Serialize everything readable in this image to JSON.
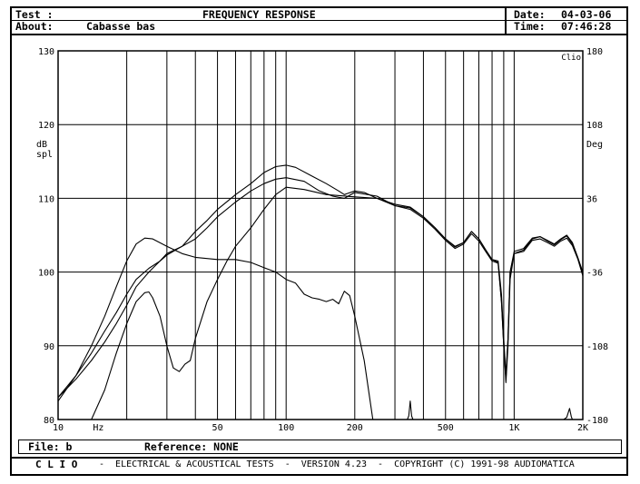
{
  "header": {
    "test_label": "Test :",
    "title": "FREQUENCY RESPONSE",
    "about_label": "About:",
    "about_value": "Cabasse bas",
    "date_label": "Date:",
    "date_value": "04-03-06",
    "time_label": "Time:",
    "time_value": "07:46:28"
  },
  "footer": {
    "file_label": "File: b",
    "reference_label": "Reference: NONE",
    "clio": "C L I O",
    "banner": "-  ELECTRICAL & ACOUSTICAL TESTS  -  VERSION 4.23  -  COPYRIGHT (C) 1991-98 AUDIOMATICA"
  },
  "chart_data": {
    "type": "line",
    "title": "FREQUENCY RESPONSE",
    "brand_corner": "Clio",
    "x_scale": "log",
    "xlim": [
      10,
      2000
    ],
    "x_ticks": [
      {
        "value": 10,
        "label": "10"
      },
      {
        "value": 12.5,
        "label": "Hz"
      },
      {
        "value": 50,
        "label": "50"
      },
      {
        "value": 100,
        "label": "100"
      },
      {
        "value": 200,
        "label": "200"
      },
      {
        "value": 500,
        "label": "500"
      },
      {
        "value": 1000,
        "label": "1K"
      },
      {
        "value": 2000,
        "label": "2K"
      }
    ],
    "x_gridlines": [
      10,
      20,
      30,
      40,
      50,
      60,
      70,
      80,
      90,
      100,
      200,
      300,
      400,
      500,
      600,
      700,
      800,
      900,
      1000,
      2000
    ],
    "y_left": {
      "label_line1": "dB",
      "label_line2": "spl",
      "ylim": [
        80,
        130
      ],
      "ticks": [
        80,
        90,
        100,
        110,
        120,
        130
      ]
    },
    "y_right": {
      "label": "Deg",
      "ylim": [
        -180,
        180
      ],
      "ticks": [
        -180,
        -108,
        -36,
        36,
        108,
        180
      ]
    },
    "grid": true,
    "series": [
      {
        "color": "#000000",
        "points": [
          [
            10,
            82.5
          ],
          [
            12,
            86
          ],
          [
            14,
            89
          ],
          [
            16,
            92
          ],
          [
            18,
            94.5
          ],
          [
            20,
            97
          ],
          [
            22,
            99
          ],
          [
            25,
            100.5
          ],
          [
            28,
            101.5
          ],
          [
            30,
            102.3
          ],
          [
            35,
            103.5
          ],
          [
            40,
            105.5
          ],
          [
            45,
            107
          ],
          [
            50,
            108.5
          ],
          [
            60,
            110.5
          ],
          [
            70,
            112
          ],
          [
            80,
            113.5
          ],
          [
            90,
            114.3
          ],
          [
            100,
            114.5
          ],
          [
            110,
            114.2
          ],
          [
            130,
            113
          ],
          [
            150,
            112
          ],
          [
            170,
            111
          ],
          [
            180,
            110.5
          ],
          [
            200,
            111
          ],
          [
            220,
            110.8
          ],
          [
            250,
            110
          ],
          [
            300,
            109
          ],
          [
            350,
            108.7
          ],
          [
            400,
            107.5
          ],
          [
            450,
            106
          ],
          [
            500,
            104.5
          ],
          [
            550,
            103.5
          ],
          [
            600,
            104
          ],
          [
            650,
            105.5
          ],
          [
            700,
            104.5
          ],
          [
            750,
            103
          ],
          [
            800,
            101.7
          ],
          [
            850,
            101.5
          ],
          [
            880,
            97
          ],
          [
            900,
            91
          ],
          [
            920,
            86
          ],
          [
            940,
            91
          ],
          [
            960,
            100
          ],
          [
            1000,
            102.5
          ],
          [
            1100,
            103
          ],
          [
            1200,
            104.5
          ],
          [
            1300,
            104.8
          ],
          [
            1400,
            104.3
          ],
          [
            1500,
            103.8
          ],
          [
            1600,
            104.5
          ],
          [
            1700,
            105
          ],
          [
            1800,
            104
          ],
          [
            1900,
            102
          ],
          [
            2000,
            100
          ]
        ]
      },
      {
        "color": "#000000",
        "points": [
          [
            10,
            83
          ],
          [
            12,
            85.5
          ],
          [
            14,
            88
          ],
          [
            16,
            90.5
          ],
          [
            18,
            93
          ],
          [
            20,
            95.5
          ],
          [
            22,
            98
          ],
          [
            25,
            100
          ],
          [
            28,
            101.5
          ],
          [
            30,
            102.5
          ],
          [
            35,
            103.5
          ],
          [
            40,
            104.5
          ],
          [
            45,
            106
          ],
          [
            50,
            107.5
          ],
          [
            60,
            109.5
          ],
          [
            70,
            111
          ],
          [
            80,
            112
          ],
          [
            90,
            112.6
          ],
          [
            100,
            112.8
          ],
          [
            120,
            112.3
          ],
          [
            140,
            111
          ],
          [
            160,
            110.3
          ],
          [
            180,
            110
          ],
          [
            200,
            110.8
          ],
          [
            250,
            110.3
          ],
          [
            300,
            109
          ],
          [
            350,
            108.5
          ],
          [
            400,
            107.3
          ],
          [
            450,
            105.8
          ],
          [
            500,
            104.3
          ],
          [
            550,
            103.2
          ],
          [
            600,
            103.8
          ],
          [
            650,
            105.2
          ],
          [
            700,
            104.2
          ],
          [
            750,
            102.8
          ],
          [
            800,
            101.5
          ],
          [
            850,
            101.2
          ],
          [
            880,
            96
          ],
          [
            900,
            90
          ],
          [
            920,
            85
          ],
          [
            940,
            90
          ],
          [
            960,
            99
          ],
          [
            1000,
            102.5
          ],
          [
            1100,
            102.8
          ],
          [
            1200,
            104.3
          ],
          [
            1300,
            104.5
          ],
          [
            1400,
            104
          ],
          [
            1500,
            103.5
          ],
          [
            1600,
            104.2
          ],
          [
            1700,
            104.6
          ],
          [
            1800,
            103.6
          ],
          [
            1900,
            101.8
          ],
          [
            2000,
            99.5
          ]
        ]
      },
      {
        "color": "#000000",
        "points": [
          [
            10,
            83
          ],
          [
            12,
            86
          ],
          [
            14,
            90
          ],
          [
            16,
            94
          ],
          [
            18,
            98
          ],
          [
            20,
            101.5
          ],
          [
            22,
            103.8
          ],
          [
            24,
            104.6
          ],
          [
            26,
            104.5
          ],
          [
            30,
            103.5
          ],
          [
            35,
            102.5
          ],
          [
            40,
            102
          ],
          [
            50,
            101.7
          ],
          [
            60,
            101.7
          ],
          [
            70,
            101.3
          ],
          [
            80,
            100.6
          ],
          [
            90,
            100
          ],
          [
            100,
            99
          ],
          [
            110,
            98.5
          ],
          [
            120,
            97
          ],
          [
            130,
            96.5
          ],
          [
            140,
            96.3
          ],
          [
            150,
            96
          ],
          [
            160,
            96.3
          ],
          [
            170,
            95.7
          ],
          [
            180,
            97.4
          ],
          [
            190,
            96.8
          ],
          [
            200,
            94
          ],
          [
            220,
            88
          ],
          [
            240,
            80
          ]
        ]
      },
      {
        "color": "#000000",
        "points": [
          [
            14,
            80
          ],
          [
            16,
            84
          ],
          [
            18,
            89
          ],
          [
            20,
            93
          ],
          [
            22,
            96
          ],
          [
            24,
            97.2
          ],
          [
            25,
            97.3
          ],
          [
            26,
            96.5
          ],
          [
            28,
            94
          ],
          [
            30,
            90
          ],
          [
            32,
            87
          ],
          [
            34,
            86.5
          ],
          [
            36,
            87.5
          ],
          [
            38,
            88
          ],
          [
            40,
            91
          ],
          [
            45,
            96
          ],
          [
            50,
            99
          ],
          [
            55,
            101.5
          ],
          [
            60,
            103.5
          ],
          [
            70,
            106
          ],
          [
            80,
            108.5
          ],
          [
            90,
            110.5
          ],
          [
            100,
            111.5
          ],
          [
            120,
            111.2
          ],
          [
            150,
            110.5
          ],
          [
            200,
            110.2
          ],
          [
            250,
            110
          ],
          [
            300,
            109.2
          ],
          [
            350,
            108.8
          ],
          [
            400,
            107.5
          ],
          [
            450,
            106
          ],
          [
            500,
            104.5
          ],
          [
            550,
            103.4
          ],
          [
            600,
            104
          ],
          [
            650,
            105.5
          ],
          [
            700,
            104.5
          ],
          [
            750,
            103
          ],
          [
            800,
            101.7
          ],
          [
            850,
            101.3
          ],
          [
            880,
            96
          ],
          [
            900,
            90
          ],
          [
            920,
            85.5
          ],
          [
            940,
            91
          ],
          [
            960,
            100
          ],
          [
            1000,
            102.8
          ],
          [
            1100,
            103.2
          ],
          [
            1200,
            104.6
          ],
          [
            1300,
            104.8
          ],
          [
            1400,
            104.2
          ],
          [
            1500,
            103.7
          ],
          [
            1600,
            104.4
          ],
          [
            1700,
            104.9
          ],
          [
            1800,
            103.8
          ],
          [
            1900,
            102
          ],
          [
            2000,
            99.8
          ]
        ]
      },
      {
        "color": "#000000",
        "points": [
          [
            340,
            80
          ],
          [
            345,
            80.5
          ],
          [
            350,
            82.5
          ],
          [
            355,
            80.5
          ],
          [
            360,
            80
          ]
        ]
      },
      {
        "color": "#000000",
        "points": [
          [
            1650,
            80
          ],
          [
            1700,
            80.3
          ],
          [
            1750,
            81.5
          ],
          [
            1780,
            80.4
          ],
          [
            1800,
            80
          ]
        ]
      }
    ]
  }
}
